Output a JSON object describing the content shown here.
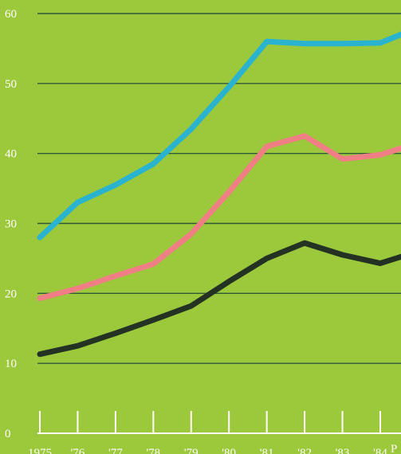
{
  "chart_data": {
    "type": "line",
    "title": "",
    "xlabel": "",
    "ylabel": "",
    "ylim": [
      0,
      60
    ],
    "y_ticks": [
      "0",
      "10",
      "20",
      "30",
      "40",
      "50",
      "60"
    ],
    "grid": true,
    "categories": [
      "1975",
      "'76",
      "'77",
      "'78",
      "'79",
      "'80",
      "'81",
      "'82",
      "'83",
      "'84",
      "P"
    ],
    "x_values": [
      1975,
      1976,
      1977,
      1978,
      1979,
      1980,
      1981,
      1982,
      1983,
      1984,
      1985
    ],
    "series": [
      {
        "color": "#2ab3cf",
        "values": [
          28,
          33,
          35.5,
          38.5,
          43.5,
          49.5,
          56,
          55.7,
          55.7,
          55.8,
          58
        ]
      },
      {
        "color": "#ef7f84",
        "values": [
          19.3,
          20.7,
          22.5,
          24.2,
          28.5,
          34.5,
          41,
          42.5,
          39.2,
          39.8,
          41.5
        ]
      },
      {
        "color": "#233223",
        "values": [
          11.3,
          12.5,
          14.3,
          16.2,
          18.2,
          21.7,
          25,
          27.2,
          25.5,
          24.3,
          26
        ]
      }
    ],
    "colors": {
      "background": "#9cc93b",
      "grid": "#2e5a3a",
      "axis": "#ffffff",
      "text": "#ffffff"
    }
  }
}
